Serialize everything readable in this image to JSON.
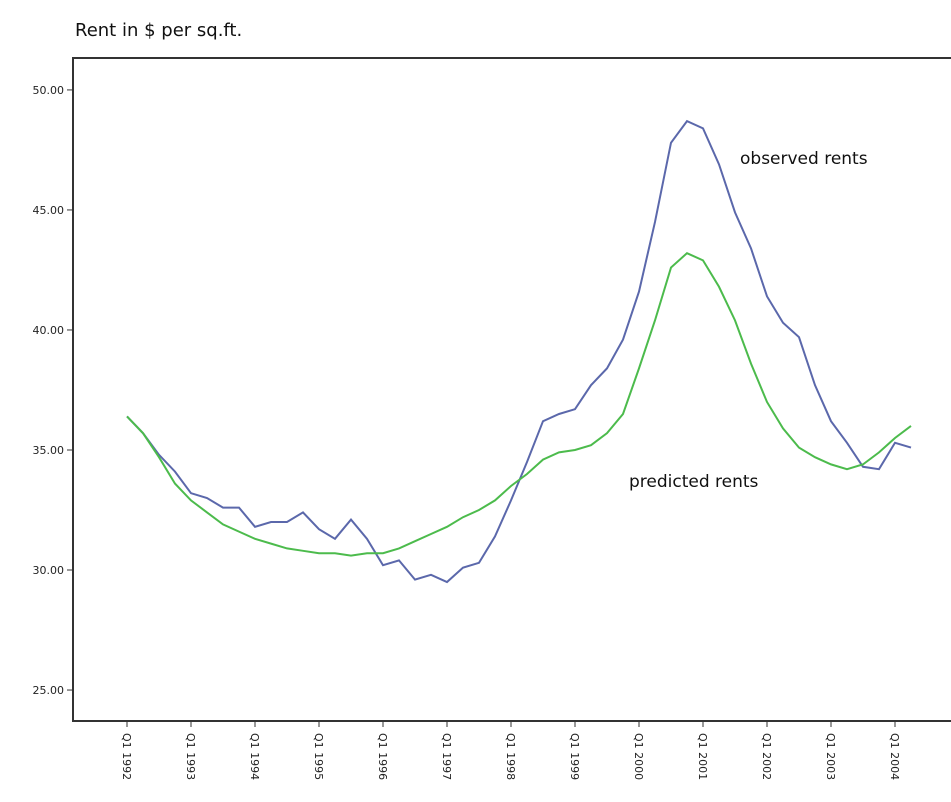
{
  "chart_data": {
    "type": "line",
    "title": "Rent in $ per sq.ft.",
    "categories": [
      "Q1 1992",
      null,
      null,
      null,
      "Q1 1993",
      null,
      null,
      null,
      "Q1 1994",
      null,
      null,
      null,
      "Q1 1995",
      null,
      null,
      null,
      "Q1 1996",
      null,
      null,
      null,
      "Q1 1997",
      null,
      null,
      null,
      "Q1 1998",
      null,
      null,
      null,
      "Q1 1999",
      null,
      null,
      null,
      "Q1 2000",
      null,
      null,
      null,
      "Q1 2001",
      null,
      null,
      null,
      "Q1 2002",
      null,
      null,
      null,
      "Q1 2003",
      null,
      null,
      null,
      "Q1 2004",
      null
    ],
    "series": [
      {
        "name": "observed rents",
        "color": "#5b68ab",
        "values": [
          36.4,
          35.7,
          34.8,
          34.1,
          33.2,
          33.0,
          32.6,
          32.6,
          31.8,
          32.0,
          32.0,
          32.4,
          31.7,
          31.3,
          32.1,
          31.3,
          30.2,
          30.4,
          29.6,
          29.8,
          29.5,
          30.1,
          30.3,
          31.4,
          32.9,
          34.5,
          36.2,
          36.5,
          36.7,
          37.7,
          38.4,
          39.6,
          41.6,
          44.5,
          47.8,
          48.7,
          48.4,
          46.9,
          44.9,
          43.4,
          41.4,
          40.3,
          39.7,
          37.7,
          36.2,
          35.3,
          34.3,
          34.2,
          35.3,
          35.1
        ]
      },
      {
        "name": "predicted rents",
        "color": "#4cbb4c",
        "values": [
          36.4,
          35.7,
          34.7,
          33.6,
          32.9,
          32.4,
          31.9,
          31.6,
          31.3,
          31.1,
          30.9,
          30.8,
          30.7,
          30.7,
          30.6,
          30.7,
          30.7,
          30.9,
          31.2,
          31.5,
          31.8,
          32.2,
          32.5,
          32.9,
          33.5,
          34.0,
          34.6,
          34.9,
          35.0,
          35.2,
          35.7,
          36.5,
          38.4,
          40.4,
          42.6,
          43.2,
          42.9,
          41.8,
          40.4,
          38.6,
          37.0,
          35.9,
          35.1,
          34.7,
          34.4,
          34.2,
          34.4,
          34.9,
          35.5,
          36.0
        ]
      }
    ],
    "ylim": [
      23.71,
      51.33
    ],
    "yticks": [
      {
        "value": 25,
        "label": "25.00"
      },
      {
        "value": 30,
        "label": "30.00"
      },
      {
        "value": 35,
        "label": "35.00"
      },
      {
        "value": 40,
        "label": "40.00"
      },
      {
        "value": 45,
        "label": "45.00"
      },
      {
        "value": 50,
        "label": "50.00"
      }
    ]
  }
}
